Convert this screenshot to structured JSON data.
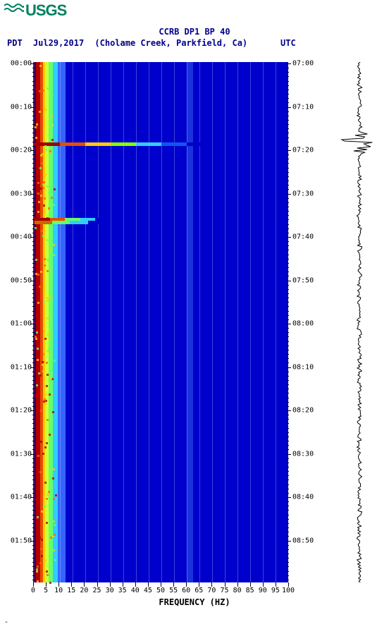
{
  "logo": {
    "text": "USGS"
  },
  "header": {
    "title": "CCRB DP1 BP 40",
    "left_tz": "PDT",
    "date": "Jul29,2017",
    "location": "(Cholame Creek, Parkfield, Ca)",
    "right_tz": "UTC"
  },
  "xaxis": {
    "label": "FREQUENCY (HZ)",
    "ticks": [
      "0",
      "5",
      "10",
      "15",
      "20",
      "25",
      "30",
      "35",
      "40",
      "45",
      "50",
      "55",
      "60",
      "65",
      "70",
      "75",
      "80",
      "85",
      "90",
      "95",
      "100"
    ]
  },
  "yaxis_left": [
    "00:00",
    "00:10",
    "00:20",
    "00:30",
    "00:40",
    "00:50",
    "01:00",
    "01:10",
    "01:20",
    "01:30",
    "01:40",
    "01:50"
  ],
  "yaxis_right": [
    "07:00",
    "07:10",
    "07:20",
    "07:30",
    "07:40",
    "07:50",
    "08:00",
    "08:10",
    "08:20",
    "08:30",
    "08:40",
    "08:50"
  ],
  "spectrogram": {
    "background": "#0000cc",
    "bands": [
      {
        "x": 0.005,
        "w": 0.018,
        "color": "#b30000"
      },
      {
        "x": 0.023,
        "w": 0.01,
        "color": "#e64d00"
      },
      {
        "x": 0.033,
        "w": 0.01,
        "color": "#ffcc00"
      },
      {
        "x": 0.043,
        "w": 0.013,
        "color": "#ccff33"
      },
      {
        "x": 0.056,
        "w": 0.015,
        "color": "#66ff66"
      },
      {
        "x": 0.071,
        "w": 0.02,
        "color": "#33ccff"
      },
      {
        "x": 0.091,
        "w": 0.03,
        "color": "#3366ff"
      },
      {
        "x": 0.6,
        "w": 0.025,
        "color": "#1a33dd"
      }
    ],
    "gridlines_x": [
      0.05,
      0.1,
      0.15,
      0.2,
      0.25,
      0.3,
      0.35,
      0.4,
      0.45,
      0.5,
      0.55,
      0.6,
      0.65,
      0.7,
      0.75,
      0.8,
      0.85,
      0.9,
      0.95
    ],
    "events": [
      {
        "y": 0.155,
        "extent": 0.7,
        "colors": [
          "#a00000",
          "#e64d00",
          "#ffcc00",
          "#88ff00",
          "#33ccff",
          "#1155ee",
          "#0000cc"
        ]
      },
      {
        "y": 0.3,
        "extent": 0.3,
        "colors": [
          "#a00000",
          "#e64d00",
          "#66ff66",
          "#33ccff",
          "#0000cc"
        ]
      },
      {
        "y": 0.305,
        "extent": 0.28,
        "colors": [
          "#cc6600",
          "#66ff66",
          "#33ccff",
          "#0000cc"
        ]
      }
    ]
  },
  "trace": {
    "stroke": "#000000",
    "burst_y": 0.155
  },
  "colors": {
    "text_title": "#00008b",
    "axis_text": "#000000",
    "logo": "#008060"
  },
  "footer": "-"
}
